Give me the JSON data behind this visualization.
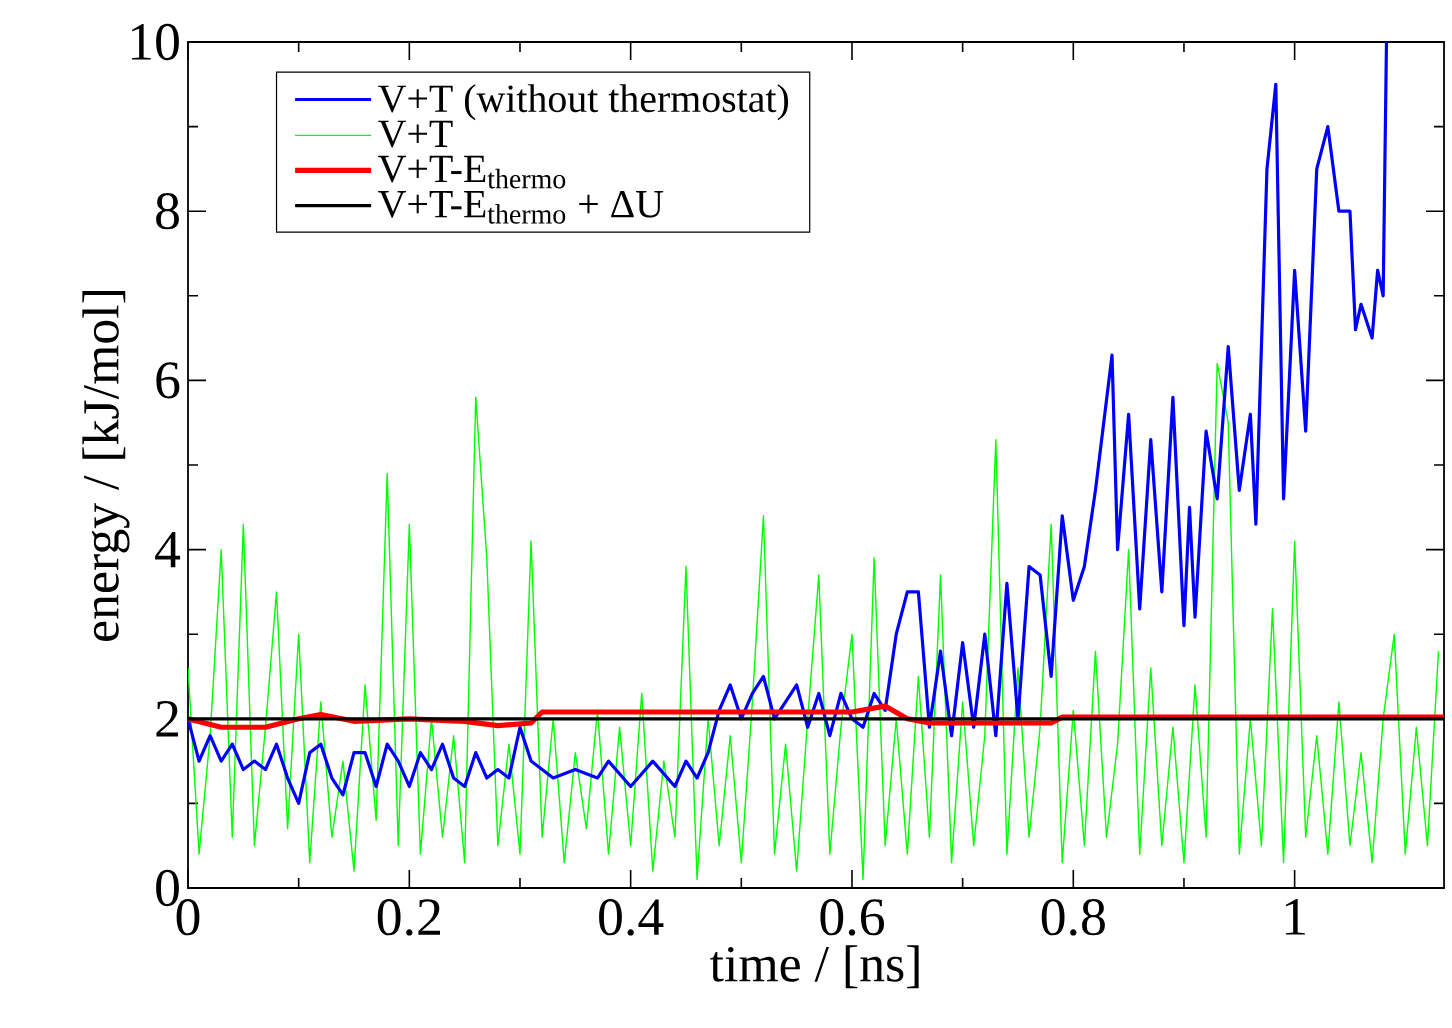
{
  "chart_data": {
    "type": "line",
    "xlabel": "time / [ns]",
    "ylabel": "energy / [kJ/mol]",
    "xlim": [
      0,
      1.135
    ],
    "ylim": [
      0,
      10
    ],
    "xticks": [
      0,
      0.2,
      0.4,
      0.6,
      0.8,
      1
    ],
    "yticks": [
      0,
      2,
      4,
      6,
      8,
      10
    ],
    "legend": "top left",
    "marker": "none",
    "line_style": "solid",
    "series": [
      {
        "name": "V+T (without thermostat)",
        "color": "#0000ff",
        "x": [
          0,
          0.01,
          0.02,
          0.03,
          0.04,
          0.05,
          0.06,
          0.07,
          0.08,
          0.09,
          0.1,
          0.11,
          0.12,
          0.13,
          0.14,
          0.15,
          0.16,
          0.17,
          0.18,
          0.19,
          0.2,
          0.21,
          0.22,
          0.23,
          0.24,
          0.25,
          0.26,
          0.27,
          0.28,
          0.29,
          0.3,
          0.31,
          0.32,
          0.33,
          0.35,
          0.37,
          0.38,
          0.4,
          0.42,
          0.44,
          0.45,
          0.46,
          0.47,
          0.48,
          0.49,
          0.5,
          0.51,
          0.52,
          0.53,
          0.54,
          0.55,
          0.56,
          0.57,
          0.58,
          0.59,
          0.6,
          0.61,
          0.62,
          0.63,
          0.64,
          0.65,
          0.66,
          0.67,
          0.68,
          0.69,
          0.7,
          0.71,
          0.72,
          0.73,
          0.74,
          0.75,
          0.76,
          0.77,
          0.78,
          0.79,
          0.8,
          0.81,
          0.82,
          0.835,
          0.84,
          0.85,
          0.86,
          0.87,
          0.88,
          0.89,
          0.9,
          0.905,
          0.91,
          0.92,
          0.93,
          0.94,
          0.95,
          0.96,
          0.965,
          0.975,
          0.983,
          0.99,
          1.0,
          1.01,
          1.02,
          1.03,
          1.04,
          1.05,
          1.055,
          1.06,
          1.07,
          1.075,
          1.08,
          1.083
        ],
        "values": [
          2.0,
          1.5,
          1.8,
          1.5,
          1.7,
          1.4,
          1.5,
          1.4,
          1.7,
          1.3,
          1.0,
          1.6,
          1.7,
          1.3,
          1.1,
          1.6,
          1.6,
          1.2,
          1.7,
          1.5,
          1.2,
          1.6,
          1.4,
          1.7,
          1.3,
          1.2,
          1.6,
          1.3,
          1.4,
          1.3,
          1.9,
          1.5,
          1.4,
          1.3,
          1.4,
          1.3,
          1.5,
          1.2,
          1.5,
          1.2,
          1.5,
          1.3,
          1.6,
          2.1,
          2.4,
          2.0,
          2.3,
          2.5,
          2.0,
          2.2,
          2.4,
          1.9,
          2.3,
          1.8,
          2.3,
          2.0,
          1.9,
          2.3,
          2.1,
          3.0,
          3.5,
          3.5,
          1.9,
          2.8,
          1.8,
          2.9,
          1.9,
          3.0,
          1.8,
          3.6,
          2.0,
          3.8,
          3.7,
          2.5,
          4.4,
          3.4,
          3.8,
          4.7,
          6.3,
          4.0,
          5.6,
          3.3,
          5.3,
          3.5,
          5.8,
          3.1,
          4.5,
          3.2,
          5.4,
          4.6,
          6.4,
          4.7,
          5.6,
          4.3,
          8.5,
          9.5,
          4.6,
          7.3,
          5.4,
          8.5,
          9.0,
          8.0,
          8.0,
          6.6,
          6.9,
          6.5,
          7.3,
          7.0,
          10.0
        ]
      },
      {
        "name": "V+T",
        "color": "#00ff00",
        "x": [
          0,
          0.01,
          0.02,
          0.03,
          0.04,
          0.05,
          0.06,
          0.07,
          0.08,
          0.09,
          0.1,
          0.11,
          0.12,
          0.13,
          0.14,
          0.15,
          0.16,
          0.17,
          0.18,
          0.19,
          0.2,
          0.21,
          0.22,
          0.23,
          0.24,
          0.25,
          0.26,
          0.27,
          0.28,
          0.29,
          0.3,
          0.31,
          0.32,
          0.33,
          0.34,
          0.35,
          0.36,
          0.37,
          0.38,
          0.39,
          0.4,
          0.41,
          0.42,
          0.43,
          0.44,
          0.45,
          0.46,
          0.47,
          0.48,
          0.49,
          0.5,
          0.51,
          0.52,
          0.53,
          0.54,
          0.55,
          0.56,
          0.57,
          0.58,
          0.59,
          0.6,
          0.61,
          0.62,
          0.63,
          0.64,
          0.65,
          0.66,
          0.67,
          0.68,
          0.69,
          0.7,
          0.71,
          0.72,
          0.73,
          0.74,
          0.75,
          0.76,
          0.77,
          0.78,
          0.79,
          0.8,
          0.81,
          0.82,
          0.83,
          0.84,
          0.85,
          0.86,
          0.87,
          0.88,
          0.89,
          0.9,
          0.91,
          0.92,
          0.93,
          0.94,
          0.95,
          0.96,
          0.97,
          0.98,
          0.99,
          1.0,
          1.01,
          1.02,
          1.03,
          1.04,
          1.05,
          1.06,
          1.07,
          1.08,
          1.09,
          1.1,
          1.11,
          1.12,
          1.13
        ],
        "values": [
          2.6,
          0.4,
          1.8,
          4.0,
          0.6,
          4.3,
          0.5,
          1.9,
          3.5,
          0.7,
          3.0,
          0.3,
          2.2,
          0.6,
          1.5,
          0.2,
          2.4,
          0.8,
          4.9,
          0.5,
          4.3,
          0.4,
          2.0,
          0.6,
          1.8,
          0.3,
          5.8,
          3.9,
          0.5,
          1.7,
          0.4,
          4.1,
          0.6,
          2.0,
          0.3,
          1.6,
          0.7,
          2.1,
          0.4,
          1.9,
          0.5,
          2.3,
          0.2,
          1.5,
          0.6,
          3.8,
          0.1,
          2.0,
          0.5,
          1.8,
          0.3,
          2.2,
          4.4,
          0.4,
          1.7,
          0.2,
          2.0,
          3.7,
          0.4,
          1.9,
          3.0,
          0.1,
          3.9,
          0.5,
          2.0,
          0.4,
          2.5,
          0.6,
          3.7,
          0.3,
          2.2,
          0.5,
          1.8,
          5.3,
          0.4,
          2.6,
          0.6,
          1.9,
          4.3,
          0.3,
          2.1,
          0.5,
          2.8,
          0.6,
          1.7,
          4.0,
          0.4,
          2.6,
          0.5,
          1.9,
          0.3,
          2.4,
          0.6,
          6.2,
          5.5,
          0.4,
          2.0,
          0.5,
          3.3,
          0.3,
          4.1,
          0.6,
          1.8,
          0.4,
          2.2,
          0.5,
          1.6,
          0.3,
          2.0,
          3.0,
          0.4,
          1.9,
          0.5,
          2.8
        ]
      },
      {
        "name": "V+T-E$_{thermo}$",
        "color": "#ff0000",
        "x": [
          0,
          0.03,
          0.07,
          0.1,
          0.12,
          0.15,
          0.2,
          0.25,
          0.28,
          0.31,
          0.32,
          0.6,
          0.63,
          0.65,
          0.67,
          0.78,
          0.79,
          1.135
        ],
        "values": [
          2.0,
          1.9,
          1.9,
          2.0,
          2.05,
          1.97,
          2.0,
          1.97,
          1.92,
          1.95,
          2.08,
          2.08,
          2.15,
          2.0,
          1.95,
          1.95,
          2.02,
          2.02
        ]
      },
      {
        "name": "V+T-E$_{thermo}$ + ΔU",
        "color": "#000000",
        "x": [
          0,
          1.135
        ],
        "values": [
          2.0,
          2.0
        ]
      }
    ]
  }
}
